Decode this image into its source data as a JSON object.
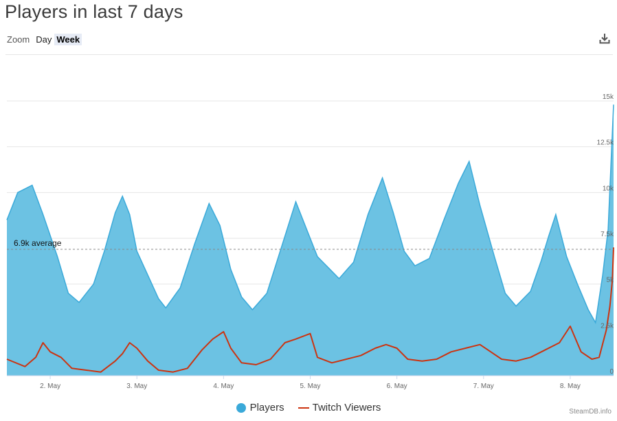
{
  "header": {
    "title": "Players in last 7 days",
    "zoom_label": "Zoom",
    "zoom_options": [
      "Day",
      "Week"
    ],
    "zoom_selected": "Week",
    "download_icon": "download-icon"
  },
  "legend": {
    "players_label": "Players",
    "twitch_label": "Twitch Viewers"
  },
  "credit": "SteamDB.info",
  "colors": {
    "players_fill": "#6cc2e3",
    "players_line": "#3aa9d9",
    "twitch_line": "#cc3310",
    "grid": "#e6e6e6",
    "average_line": "#888888"
  },
  "chart_data": {
    "type": "area",
    "x_unit": "days",
    "xlim": [
      "2023-05-01 12:00",
      "2023-05-08 12:00"
    ],
    "ylim": [
      0,
      15000
    ],
    "y_ticks": [
      0,
      2500,
      5000,
      7500,
      10000,
      12500,
      15000
    ],
    "y_tick_labels": [
      "0",
      "2.5k",
      "5k",
      "7.5k",
      "10k",
      "12.5k",
      "15k"
    ],
    "x_ticks": [
      "2. May",
      "3. May",
      "4. May",
      "5. May",
      "6. May",
      "7. May",
      "8. May"
    ],
    "x_tick_positions": [
      "2023-05-02",
      "2023-05-03",
      "2023-05-04",
      "2023-05-05",
      "2023-05-06",
      "2023-05-07",
      "2023-05-08"
    ],
    "average": {
      "value": 6900,
      "label": "6.9k average"
    },
    "grid": true,
    "legend_position": "bottom-center",
    "series": [
      {
        "name": "Players",
        "type": "area",
        "points": [
          [
            "2023-05-01 12:00",
            8500
          ],
          [
            "2023-05-01 15:00",
            10000
          ],
          [
            "2023-05-01 19:00",
            10400
          ],
          [
            "2023-05-01 22:00",
            8800
          ],
          [
            "2023-05-02 02:00",
            6500
          ],
          [
            "2023-05-02 05:00",
            4500
          ],
          [
            "2023-05-02 08:00",
            4000
          ],
          [
            "2023-05-02 12:00",
            5000
          ],
          [
            "2023-05-02 15:00",
            6800
          ],
          [
            "2023-05-02 18:00",
            8900
          ],
          [
            "2023-05-02 20:00",
            9800
          ],
          [
            "2023-05-02 22:00",
            8800
          ],
          [
            "2023-05-03 00:00",
            6800
          ],
          [
            "2023-05-03 03:00",
            5500
          ],
          [
            "2023-05-03 06:00",
            4200
          ],
          [
            "2023-05-03 08:00",
            3700
          ],
          [
            "2023-05-03 12:00",
            4800
          ],
          [
            "2023-05-03 16:00",
            7200
          ],
          [
            "2023-05-03 20:00",
            9400
          ],
          [
            "2023-05-03 23:00",
            8200
          ],
          [
            "2023-05-04 02:00",
            5800
          ],
          [
            "2023-05-04 05:00",
            4300
          ],
          [
            "2023-05-04 08:00",
            3600
          ],
          [
            "2023-05-04 12:00",
            4500
          ],
          [
            "2023-05-04 16:00",
            7000
          ],
          [
            "2023-05-04 20:00",
            9500
          ],
          [
            "2023-05-04 23:00",
            8000
          ],
          [
            "2023-05-05 02:00",
            6500
          ],
          [
            "2023-05-05 05:00",
            5900
          ],
          [
            "2023-05-05 08:00",
            5300
          ],
          [
            "2023-05-05 12:00",
            6200
          ],
          [
            "2023-05-05 16:00",
            8800
          ],
          [
            "2023-05-05 20:00",
            10800
          ],
          [
            "2023-05-05 23:00",
            8900
          ],
          [
            "2023-05-06 02:00",
            6800
          ],
          [
            "2023-05-06 05:00",
            6000
          ],
          [
            "2023-05-06 09:00",
            6400
          ],
          [
            "2023-05-06 13:00",
            8500
          ],
          [
            "2023-05-06 17:00",
            10500
          ],
          [
            "2023-05-06 20:00",
            11700
          ],
          [
            "2023-05-06 23:00",
            9300
          ],
          [
            "2023-05-07 03:00",
            6500
          ],
          [
            "2023-05-07 06:00",
            4500
          ],
          [
            "2023-05-07 09:00",
            3800
          ],
          [
            "2023-05-07 13:00",
            4600
          ],
          [
            "2023-05-07 16:00",
            6300
          ],
          [
            "2023-05-07 18:00",
            7600
          ],
          [
            "2023-05-07 20:00",
            8800
          ],
          [
            "2023-05-07 23:00",
            6500
          ],
          [
            "2023-05-08 02:00",
            5000
          ],
          [
            "2023-05-08 05:00",
            3600
          ],
          [
            "2023-05-08 07:00",
            2900
          ],
          [
            "2023-05-08 09:00",
            5500
          ],
          [
            "2023-05-08 10:30",
            8000
          ],
          [
            "2023-05-08 12:00",
            14800
          ]
        ]
      },
      {
        "name": "Twitch Viewers",
        "type": "line",
        "points": [
          [
            "2023-05-01 12:00",
            900
          ],
          [
            "2023-05-01 17:00",
            500
          ],
          [
            "2023-05-01 20:00",
            1000
          ],
          [
            "2023-05-01 22:00",
            1800
          ],
          [
            "2023-05-02 00:00",
            1300
          ],
          [
            "2023-05-02 03:00",
            1000
          ],
          [
            "2023-05-02 06:00",
            400
          ],
          [
            "2023-05-02 10:00",
            300
          ],
          [
            "2023-05-02 14:00",
            200
          ],
          [
            "2023-05-02 18:00",
            800
          ],
          [
            "2023-05-02 20:00",
            1200
          ],
          [
            "2023-05-02 22:00",
            1800
          ],
          [
            "2023-05-03 00:00",
            1500
          ],
          [
            "2023-05-03 03:00",
            800
          ],
          [
            "2023-05-03 06:00",
            300
          ],
          [
            "2023-05-03 10:00",
            200
          ],
          [
            "2023-05-03 14:00",
            400
          ],
          [
            "2023-05-03 18:00",
            1400
          ],
          [
            "2023-05-03 21:00",
            2000
          ],
          [
            "2023-05-04 00:00",
            2400
          ],
          [
            "2023-05-04 02:00",
            1500
          ],
          [
            "2023-05-04 05:00",
            700
          ],
          [
            "2023-05-04 09:00",
            600
          ],
          [
            "2023-05-04 13:00",
            900
          ],
          [
            "2023-05-04 17:00",
            1800
          ],
          [
            "2023-05-04 20:00",
            2000
          ],
          [
            "2023-05-05 00:00",
            2300
          ],
          [
            "2023-05-05 02:00",
            1000
          ],
          [
            "2023-05-05 06:00",
            700
          ],
          [
            "2023-05-05 10:00",
            900
          ],
          [
            "2023-05-05 14:00",
            1100
          ],
          [
            "2023-05-05 18:00",
            1500
          ],
          [
            "2023-05-05 21:00",
            1700
          ],
          [
            "2023-05-06 00:00",
            1500
          ],
          [
            "2023-05-06 03:00",
            900
          ],
          [
            "2023-05-06 07:00",
            800
          ],
          [
            "2023-05-06 11:00",
            900
          ],
          [
            "2023-05-06 15:00",
            1300
          ],
          [
            "2023-05-06 19:00",
            1500
          ],
          [
            "2023-05-06 23:00",
            1700
          ],
          [
            "2023-05-07 02:00",
            1300
          ],
          [
            "2023-05-07 05:00",
            900
          ],
          [
            "2023-05-07 09:00",
            800
          ],
          [
            "2023-05-07 13:00",
            1000
          ],
          [
            "2023-05-07 17:00",
            1400
          ],
          [
            "2023-05-07 21:00",
            1800
          ],
          [
            "2023-05-08 00:00",
            2700
          ],
          [
            "2023-05-08 03:00",
            1300
          ],
          [
            "2023-05-08 06:00",
            900
          ],
          [
            "2023-05-08 08:00",
            1000
          ],
          [
            "2023-05-08 10:00",
            2500
          ],
          [
            "2023-05-08 11:00",
            3800
          ],
          [
            "2023-05-08 11:40",
            5200
          ],
          [
            "2023-05-08 12:00",
            7000
          ]
        ]
      }
    ]
  }
}
